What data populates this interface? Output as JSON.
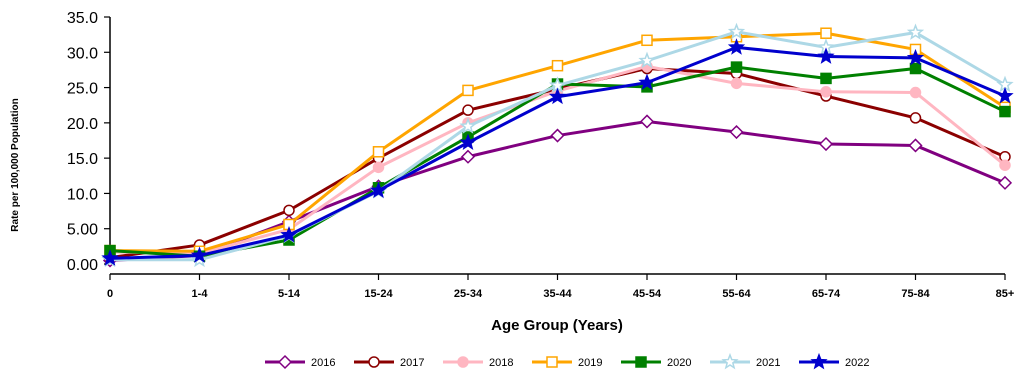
{
  "chart_data": {
    "type": "line",
    "xlabel": "Age Group (Years)",
    "ylabel": "Rate per 100,000 Population",
    "categories": [
      "0",
      "1-4",
      "5-14",
      "15-24",
      "25-34",
      "35-44",
      "45-54",
      "55-64",
      "65-74",
      "75-84",
      "85+"
    ],
    "ylim": [
      0,
      35
    ],
    "yticks": [
      "0.00",
      "5.00",
      "10.0",
      "15.0",
      "20.0",
      "25.0",
      "30.0",
      "35.0"
    ],
    "grid": false,
    "legend": "bottom",
    "series": [
      {
        "name": "2016",
        "color": "#800080",
        "marker": "diamond-open",
        "values": [
          0.5,
          1.2,
          6.0,
          11.0,
          15.2,
          18.2,
          20.2,
          18.7,
          17.0,
          16.8,
          11.5
        ]
      },
      {
        "name": "2017",
        "color": "#8b0000",
        "marker": "circle-open",
        "values": [
          0.9,
          2.7,
          7.6,
          15.0,
          21.8,
          24.8,
          27.7,
          27.0,
          23.8,
          20.7,
          15.2
        ]
      },
      {
        "name": "2018",
        "color": "#ffb6c1",
        "marker": "circle-filled",
        "values": [
          1.7,
          1.5,
          4.9,
          13.7,
          20.0,
          24.5,
          28.0,
          25.6,
          24.4,
          24.3,
          14.0
        ]
      },
      {
        "name": "2019",
        "color": "#ffa500",
        "marker": "square-open",
        "values": [
          1.9,
          1.8,
          5.6,
          15.9,
          24.6,
          28.1,
          31.7,
          32.2,
          32.7,
          30.4,
          22.2
        ]
      },
      {
        "name": "2020",
        "color": "#008000",
        "marker": "square-filled",
        "values": [
          1.9,
          1.1,
          3.4,
          10.8,
          18.0,
          25.5,
          25.1,
          27.9,
          26.3,
          27.7,
          21.6
        ]
      },
      {
        "name": "2021",
        "color": "#add8e6",
        "marker": "star-open",
        "values": [
          0.6,
          0.6,
          4.0,
          10.3,
          19.5,
          25.3,
          28.8,
          32.9,
          30.7,
          32.8,
          25.4
        ]
      },
      {
        "name": "2022",
        "color": "#0000cd",
        "marker": "star-filled",
        "values": [
          0.8,
          1.2,
          4.1,
          10.4,
          17.2,
          23.7,
          25.7,
          30.7,
          29.4,
          29.2,
          23.8
        ]
      }
    ]
  }
}
